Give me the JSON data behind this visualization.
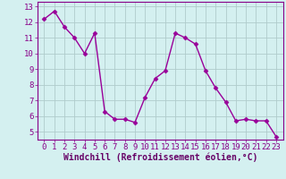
{
  "x": [
    0,
    1,
    2,
    3,
    4,
    5,
    6,
    7,
    8,
    9,
    10,
    11,
    12,
    13,
    14,
    15,
    16,
    17,
    18,
    19,
    20,
    21,
    22,
    23
  ],
  "y": [
    12.2,
    12.7,
    11.7,
    11.0,
    10.0,
    11.3,
    6.3,
    5.8,
    5.8,
    5.6,
    7.2,
    8.4,
    8.9,
    11.3,
    11.0,
    10.6,
    8.9,
    7.8,
    6.9,
    5.7,
    5.8,
    5.7,
    5.7,
    4.7
  ],
  "line_color": "#990099",
  "marker": "D",
  "marker_size": 2.5,
  "bg_color": "#d4f0f0",
  "grid_color": "#b0cccc",
  "xlabel": "Windchill (Refroidissement éolien,°C)",
  "ylim_min": 4.5,
  "ylim_max": 13.3,
  "yticks": [
    5,
    6,
    7,
    8,
    9,
    10,
    11,
    12,
    13
  ],
  "xticks": [
    0,
    1,
    2,
    3,
    4,
    5,
    6,
    7,
    8,
    9,
    10,
    11,
    12,
    13,
    14,
    15,
    16,
    17,
    18,
    19,
    20,
    21,
    22,
    23
  ],
  "tick_label_color": "#880088",
  "xlabel_color": "#660066",
  "spine_color": "#880088",
  "xlabel_fontsize": 7.0,
  "tick_fontsize": 6.5,
  "line_width": 1.0
}
